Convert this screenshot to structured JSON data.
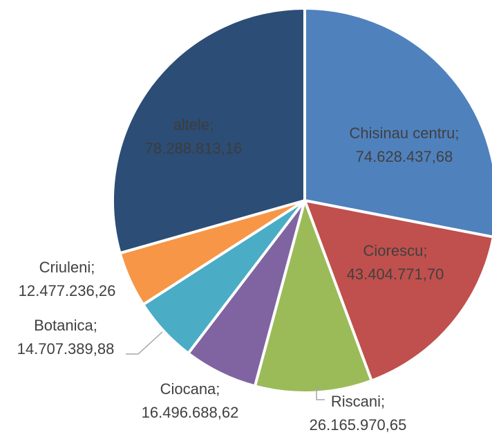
{
  "chart_data": {
    "type": "pie",
    "title": "",
    "start": "12 o'clock, clockwise",
    "slices": [
      {
        "name": "Chisinau centru",
        "value": 74628437.68,
        "label_name": "Chisinau centru;",
        "label_value": "74.628.437,68",
        "color": "#4f81bd"
      },
      {
        "name": "Ciorescu",
        "value": 43404771.7,
        "label_name": "Ciorescu;",
        "label_value": "43.404.771,70",
        "color": "#c0504d"
      },
      {
        "name": "Riscani",
        "value": 26165970.65,
        "label_name": "Riscani;",
        "label_value": "26.165.970,65",
        "color": "#9bbb59"
      },
      {
        "name": "Ciocana",
        "value": 16496688.62,
        "label_name": "Ciocana;",
        "label_value": "16.496.688,62",
        "color": "#8064a2"
      },
      {
        "name": "Botanica",
        "value": 14707389.88,
        "label_name": "Botanica;",
        "label_value": "14.707.389,88",
        "color": "#4bacc6"
      },
      {
        "name": "Criuleni",
        "value": 12477236.26,
        "label_name": "Criuleni;",
        "label_value": "12.477.236,26",
        "color": "#f79646"
      },
      {
        "name": "altele",
        "value": 78288813.16,
        "label_name": "altele;",
        "label_value": "78.288.813,16",
        "color": "#2c4d75"
      }
    ],
    "label_colors": {
      "inside": "#404040",
      "inside_dark_slice": "#3c3c3c",
      "outside": "#404040",
      "leader": "#a6a6a6"
    }
  }
}
